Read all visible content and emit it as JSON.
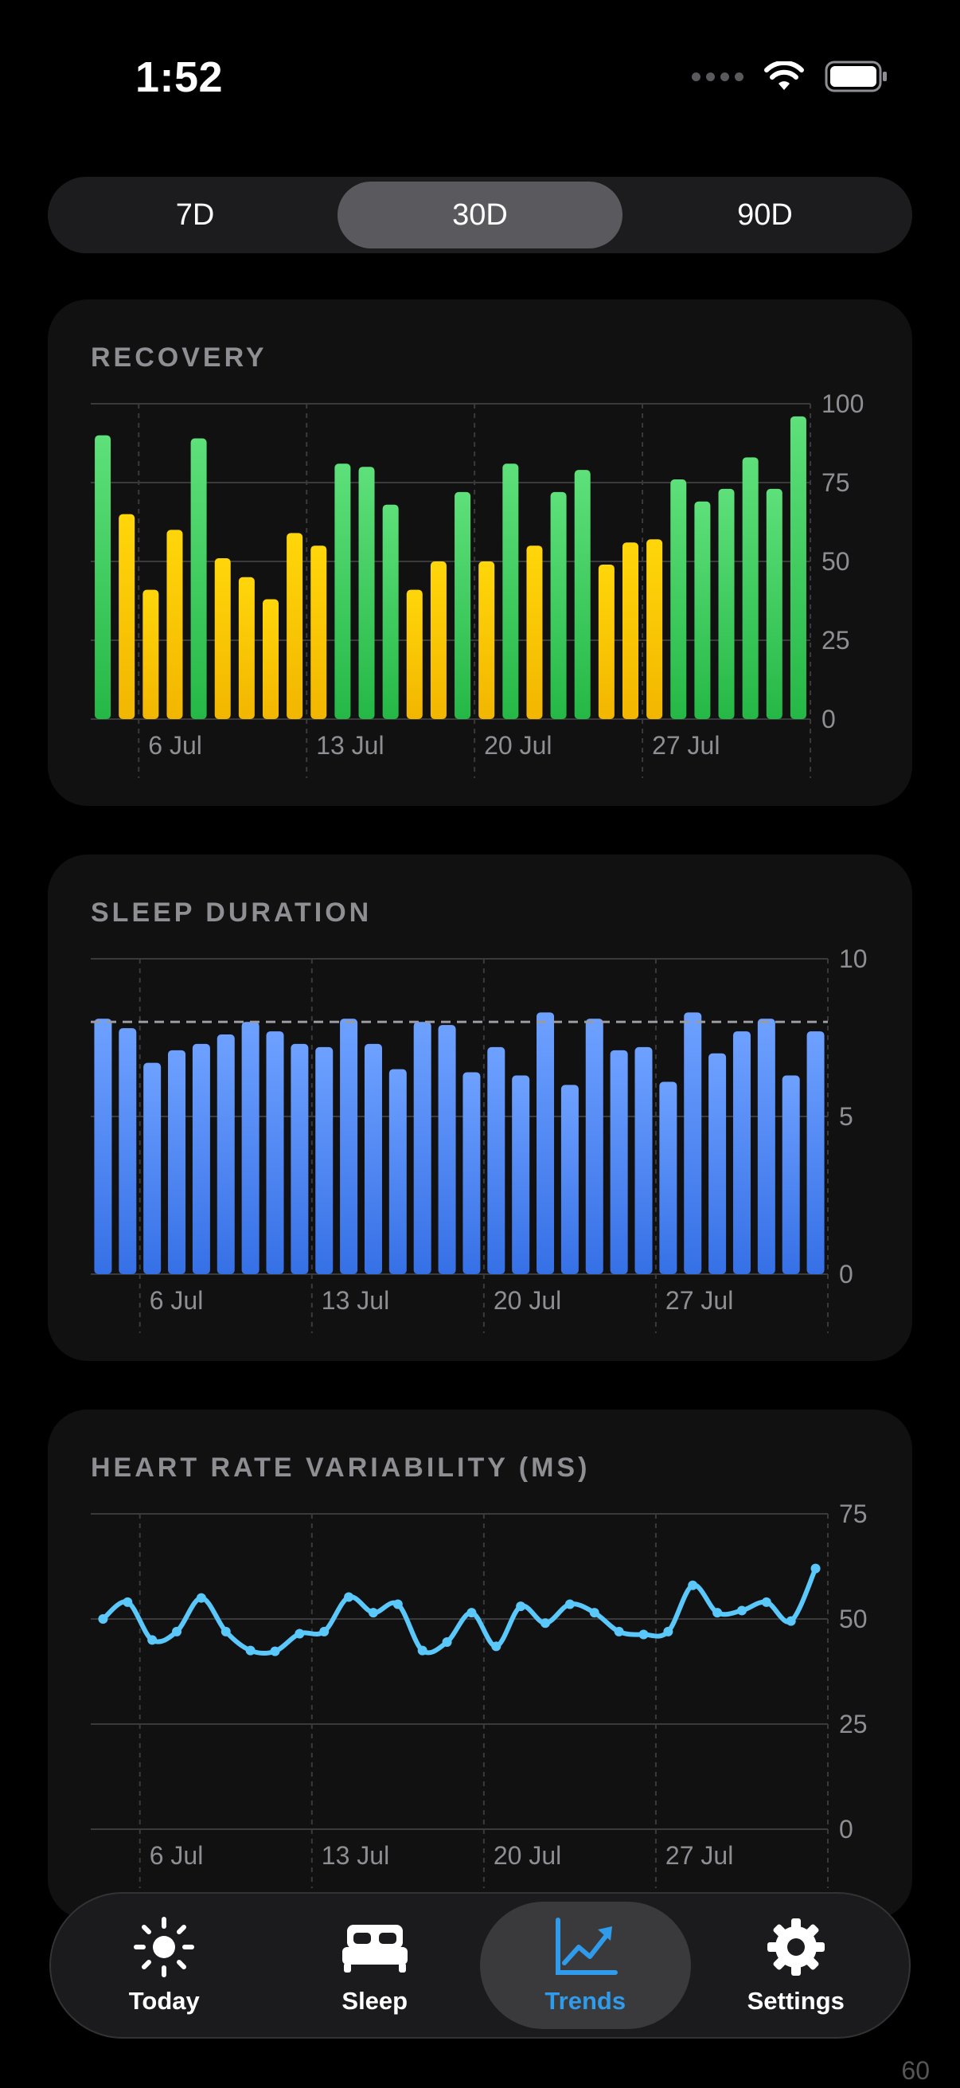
{
  "status_bar": {
    "time": "1:52"
  },
  "range_selector": {
    "options": [
      "7D",
      "30D",
      "90D"
    ],
    "selected": "30D"
  },
  "colors": {
    "green": "#34c759",
    "yellow": "#ffcc00",
    "blue": "#4a86f5",
    "hrv_line": "#5ac8fa",
    "tab_active": "#2f9bea"
  },
  "recovery": {
    "title": "RECOVERY",
    "chart_data": {
      "type": "bar",
      "y_ticks": [
        "100",
        "75",
        "50",
        "25",
        "0"
      ],
      "ylim": [
        0,
        100
      ],
      "x_tick_labels": [
        "6 Jul",
        "13 Jul",
        "20 Jul",
        "27 Jul"
      ],
      "values": [
        90,
        65,
        41,
        60,
        89,
        51,
        45,
        38,
        59,
        55,
        81,
        80,
        68,
        41,
        50,
        72,
        50,
        81,
        55,
        72,
        79,
        49,
        56,
        57,
        76,
        69,
        73,
        83,
        73,
        96
      ],
      "color_rule": "green when value >= 67, yellow otherwise"
    }
  },
  "sleep": {
    "title": "SLEEP DURATION",
    "chart_data": {
      "type": "bar",
      "y_ticks": [
        "10",
        "5",
        "0"
      ],
      "ylim": [
        0,
        10
      ],
      "reference_line": 8,
      "x_tick_labels": [
        "6 Jul",
        "13 Jul",
        "20 Jul",
        "27 Jul"
      ],
      "values": [
        8.1,
        7.8,
        6.7,
        7.1,
        7.3,
        7.6,
        8.0,
        7.7,
        7.3,
        7.2,
        8.1,
        7.3,
        6.5,
        8.0,
        7.9,
        6.4,
        7.2,
        6.3,
        8.3,
        6.0,
        8.1,
        7.1,
        7.2,
        6.1,
        8.3,
        7.0,
        7.7,
        8.1,
        6.3,
        7.7
      ]
    }
  },
  "hrv": {
    "title": "HEART RATE VARIABILITY (MS)",
    "chart_data": {
      "type": "line",
      "y_ticks": [
        "75",
        "50",
        "25",
        "0"
      ],
      "ylim": [
        0,
        75
      ],
      "x_tick_labels": [
        "6 Jul",
        "13 Jul",
        "20 Jul",
        "27 Jul"
      ],
      "values": [
        50,
        54,
        45,
        47,
        55,
        47,
        42.5,
        42.3,
        46.5,
        47,
        55.2,
        51.5,
        53.5,
        42.5,
        44.5,
        51.5,
        43.5,
        53,
        49,
        53.5,
        51.5,
        47,
        46.3,
        47,
        58,
        51.5,
        52,
        54,
        49.5,
        62
      ]
    }
  },
  "tab_bar": {
    "tabs": [
      {
        "label": "Today",
        "icon": "sun-icon"
      },
      {
        "label": "Sleep",
        "icon": "bed-icon"
      },
      {
        "label": "Trends",
        "icon": "chart-line-icon"
      },
      {
        "label": "Settings",
        "icon": "gear-icon"
      }
    ],
    "active": "Trends"
  },
  "peek_label": "60"
}
